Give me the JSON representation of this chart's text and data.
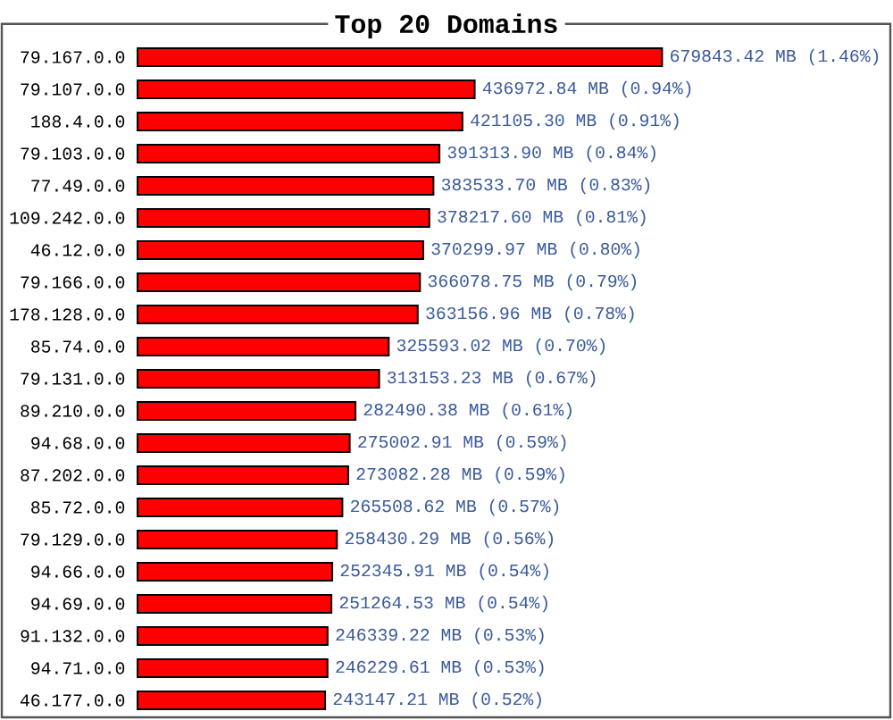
{
  "chart_data": {
    "type": "bar",
    "orientation": "horizontal",
    "title": "Top 20 Domains",
    "categories": [
      "79.167.0.0",
      "79.107.0.0",
      "188.4.0.0",
      "79.103.0.0",
      "77.49.0.0",
      "109.242.0.0",
      "46.12.0.0",
      "79.166.0.0",
      "178.128.0.0",
      "85.74.0.0",
      "79.131.0.0",
      "89.210.0.0",
      "94.68.0.0",
      "87.202.0.0",
      "85.72.0.0",
      "79.129.0.0",
      "94.66.0.0",
      "94.69.0.0",
      "91.132.0.0",
      "94.71.0.0",
      "46.177.0.0"
    ],
    "values": [
      679843.42,
      436972.84,
      421105.3,
      391313.9,
      383533.7,
      378217.6,
      370299.97,
      366078.75,
      363156.96,
      325593.02,
      313153.23,
      282490.38,
      275002.91,
      273082.28,
      265508.62,
      258430.29,
      252345.91,
      251264.53,
      246339.22,
      246229.61,
      243147.21
    ],
    "value_labels": [
      "679843.42 MB (1.46%)",
      "436972.84 MB (0.94%)",
      "421105.30 MB (0.91%)",
      "391313.90 MB (0.84%)",
      "383533.70 MB (0.83%)",
      "378217.60 MB (0.81%)",
      "370299.97 MB (0.80%)",
      "366078.75 MB (0.79%)",
      "363156.96 MB (0.78%)",
      "325593.02 MB (0.70%)",
      "313153.23 MB (0.67%)",
      "282490.38 MB (0.61%)",
      "275002.91 MB (0.59%)",
      "273082.28 MB (0.59%)",
      "265508.62 MB (0.57%)",
      "258430.29 MB (0.56%)",
      "252345.91 MB (0.54%)",
      "251264.53 MB (0.54%)",
      "246339.22 MB (0.53%)",
      "246229.61 MB (0.53%)",
      "243147.21 MB (0.52%)"
    ],
    "color": "#ff0000"
  }
}
